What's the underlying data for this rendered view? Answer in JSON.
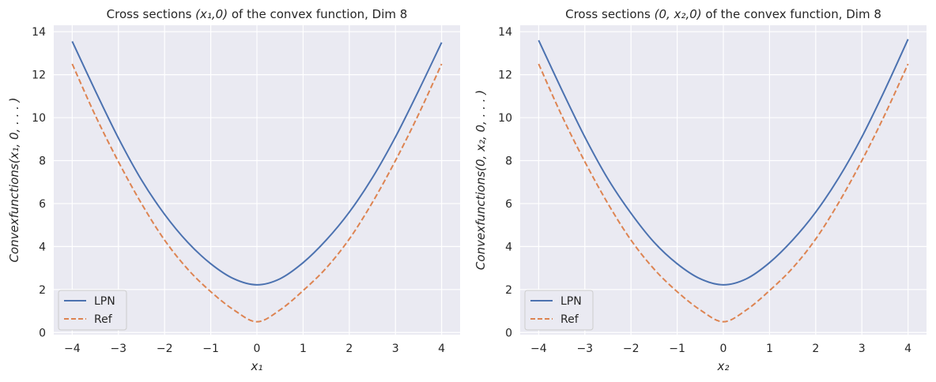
{
  "chart_data": [
    {
      "type": "line",
      "title_prefix": "Cross sections ",
      "title_math": "(x₁,0)",
      "title_suffix": " of the convex function, Dim 8",
      "xlabel": "x₁",
      "ylabel": "Convexfunctions(x₁, 0, . . . )",
      "xlim": [
        -4.4,
        4.4
      ],
      "ylim": [
        -0.1,
        14.3
      ],
      "xticks": [
        -4,
        -3,
        -2,
        -1,
        0,
        1,
        2,
        3,
        4
      ],
      "xtick_labels": [
        "−4",
        "−3",
        "−2",
        "−1",
        "0",
        "1",
        "2",
        "3",
        "4"
      ],
      "yticks": [
        0,
        2,
        4,
        6,
        8,
        10,
        12,
        14
      ],
      "ytick_labels": [
        "0",
        "2",
        "4",
        "6",
        "8",
        "10",
        "12",
        "14"
      ],
      "legend_position": "lower-left",
      "series": [
        {
          "name": "LPN",
          "color": "#4c72b0",
          "dash": "solid",
          "x": [
            -4,
            -3.5,
            -3,
            -2.5,
            -2,
            -1.5,
            -1,
            -0.5,
            0,
            0.5,
            1,
            1.5,
            2,
            2.5,
            3,
            3.5,
            4
          ],
          "y": [
            13.55,
            11.25,
            9.05,
            7.1,
            5.5,
            4.2,
            3.2,
            2.5,
            2.22,
            2.5,
            3.25,
            4.3,
            5.6,
            7.2,
            9.1,
            11.25,
            13.5
          ]
        },
        {
          "name": "Ref",
          "color": "#dd8452",
          "dash": "dashed",
          "x": [
            -4,
            -3.5,
            -3,
            -2.5,
            -2,
            -1.5,
            -1,
            -0.5,
            0,
            0.5,
            1,
            1.5,
            2,
            2.5,
            3,
            3.5,
            4
          ],
          "y": [
            12.5,
            10.1,
            7.95,
            6.0,
            4.3,
            2.95,
            1.9,
            1.05,
            0.5,
            1.05,
            1.95,
            3.0,
            4.35,
            6.05,
            8.0,
            10.15,
            12.5
          ]
        }
      ]
    },
    {
      "type": "line",
      "title_prefix": "Cross sections ",
      "title_math": "(0, x₂,0)",
      "title_suffix": " of the convex function, Dim 8",
      "xlabel": "x₂",
      "ylabel": "Convexfunctions(0, x₂, 0, . . . )",
      "xlim": [
        -4.4,
        4.4
      ],
      "ylim": [
        -0.1,
        14.3
      ],
      "xticks": [
        -4,
        -3,
        -2,
        -1,
        0,
        1,
        2,
        3,
        4
      ],
      "xtick_labels": [
        "−4",
        "−3",
        "−2",
        "−1",
        "0",
        "1",
        "2",
        "3",
        "4"
      ],
      "yticks": [
        0,
        2,
        4,
        6,
        8,
        10,
        12,
        14
      ],
      "ytick_labels": [
        "0",
        "2",
        "4",
        "6",
        "8",
        "10",
        "12",
        "14"
      ],
      "legend_position": "lower-left",
      "series": [
        {
          "name": "LPN",
          "color": "#4c72b0",
          "dash": "solid",
          "x": [
            -4,
            -3.5,
            -3,
            -2.5,
            -2,
            -1.5,
            -1,
            -0.5,
            0,
            0.5,
            1,
            1.5,
            2,
            2.5,
            3,
            3.5,
            4
          ],
          "y": [
            13.6,
            11.3,
            9.1,
            7.15,
            5.55,
            4.2,
            3.2,
            2.5,
            2.22,
            2.5,
            3.25,
            4.3,
            5.6,
            7.2,
            9.1,
            11.3,
            13.65
          ]
        },
        {
          "name": "Ref",
          "color": "#dd8452",
          "dash": "dashed",
          "x": [
            -4,
            -3.5,
            -3,
            -2.5,
            -2,
            -1.5,
            -1,
            -0.5,
            0,
            0.5,
            1,
            1.5,
            2,
            2.5,
            3,
            3.5,
            4
          ],
          "y": [
            12.5,
            10.1,
            7.95,
            6.0,
            4.3,
            2.95,
            1.9,
            1.05,
            0.5,
            1.05,
            1.95,
            3.0,
            4.35,
            6.05,
            8.0,
            10.15,
            12.5
          ]
        }
      ]
    }
  ]
}
